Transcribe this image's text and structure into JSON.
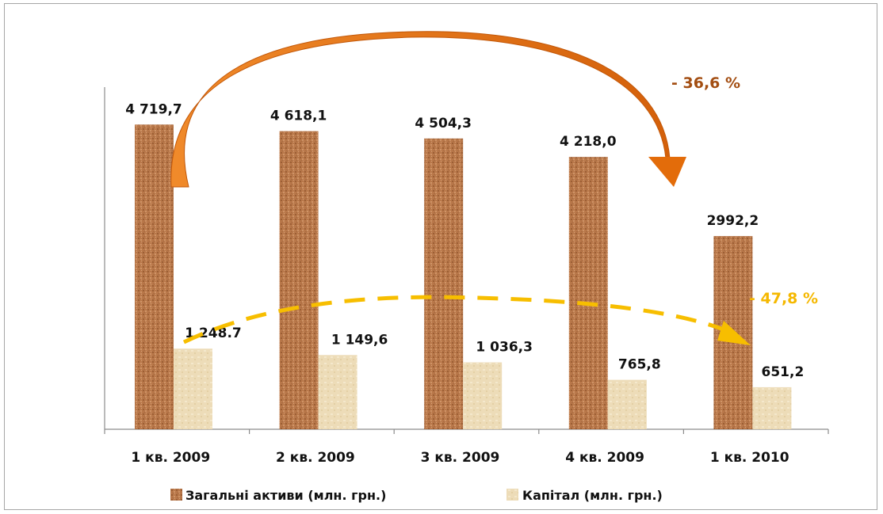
{
  "chart_data": {
    "type": "bar",
    "categories": [
      "1 кв.  2009",
      "2 кв.  2009",
      "3 кв.  2009",
      "4 кв.  2009",
      "1 кв.  2010"
    ],
    "series": [
      {
        "name": "Загальні активи  (млн. грн.)",
        "values": [
          4719.7,
          4618.1,
          4504.3,
          4218.0,
          2992.2
        ],
        "labels": [
          "4 719,7",
          "4 618,1",
          "4 504,3",
          "4 218,0",
          "2992,2"
        ],
        "color": "#b9784a"
      },
      {
        "name": "Капітал  (млн. грн.)",
        "values": [
          1248.7,
          1149.6,
          1036.3,
          765.8,
          651.2
        ],
        "labels": [
          "1 248.7",
          "1 149,6",
          "1 036,3",
          "765,8",
          "651,2"
        ],
        "color": "#eddcb8"
      }
    ],
    "ylim": [
      0,
      5300
    ],
    "grid": false,
    "legend_position": "bottom",
    "annotations": [
      {
        "text": "- 36,6 %",
        "series": 0,
        "color": "#a34e12"
      },
      {
        "text": "- 47,8 %",
        "series": 1,
        "color": "#f5b800"
      }
    ]
  },
  "colors": {
    "arrow_assets": "#e36c0a",
    "arrow_capital": "#f7be00"
  }
}
